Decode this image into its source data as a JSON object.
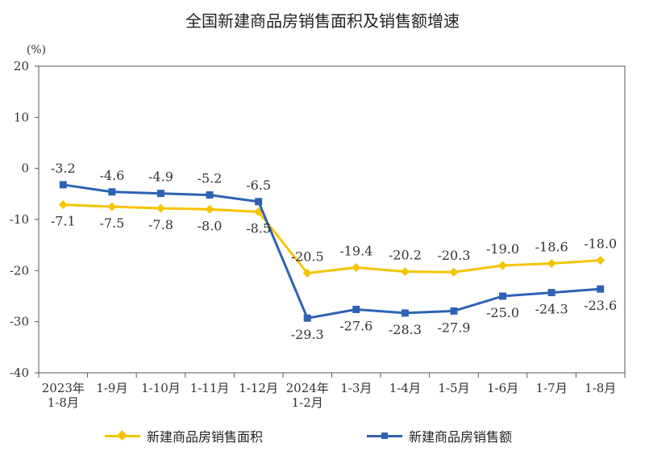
{
  "title": "全国新建商品房销售面积及销售额增速",
  "colors": {
    "area": "#F5C400",
    "amount": "#2E62B4",
    "axis": "#555555",
    "label": "#333333"
  },
  "chart_data": {
    "type": "line",
    "title": "全国新建商品房销售面积及销售额增速",
    "ylabel": "(%)",
    "ylim": [
      -40,
      20
    ],
    "yticks": [
      20,
      10,
      0,
      -10,
      -20,
      -30,
      -40
    ],
    "categories": [
      "2023年\n1-8月",
      "1-9月",
      "1-10月",
      "1-11月",
      "1-12月",
      "2024年\n1-2月",
      "1-3月",
      "1-4月",
      "1-5月",
      "1-6月",
      "1-7月",
      "1-8月"
    ],
    "series": [
      {
        "name": "新建商品房销售面积",
        "marker": "diamond",
        "values": [
          -7.1,
          -7.5,
          -7.8,
          -8.0,
          -8.5,
          -20.5,
          -19.4,
          -20.2,
          -20.3,
          -19.0,
          -18.6,
          -18.0
        ]
      },
      {
        "name": "新建商品房销售额",
        "marker": "square",
        "values": [
          -3.2,
          -4.6,
          -4.9,
          -5.2,
          -6.5,
          -29.3,
          -27.6,
          -28.3,
          -27.9,
          -25.0,
          -24.3,
          -23.6
        ]
      }
    ],
    "labels_area": [
      "-7.1",
      "-7.5",
      "-7.8",
      "-8.0",
      "-8.5",
      "-20.5",
      "-19.4",
      "-20.2",
      "-20.3",
      "-19.0",
      "-18.6",
      "-18.0"
    ],
    "labels_amount": [
      "-3.2",
      "-4.6",
      "-4.9",
      "-5.2",
      "-6.5",
      "-29.3",
      "-27.6",
      "-28.3",
      "-27.9",
      "-25.0",
      "-24.3",
      "-23.6"
    ],
    "grid": false,
    "legend": "bottom"
  }
}
